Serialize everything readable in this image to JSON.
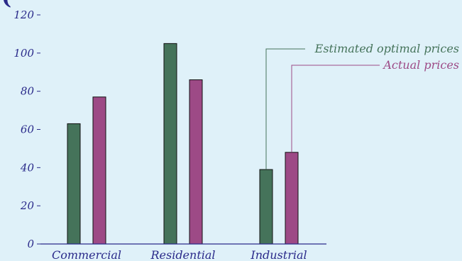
{
  "chart_data": {
    "type": "bar",
    "title": "(",
    "categories": [
      "Commercial",
      "Residential",
      "Industrial"
    ],
    "series": [
      {
        "name": "Estimated optimal prices",
        "values": [
          63,
          105,
          39
        ],
        "color": "#45735a"
      },
      {
        "name": "Actual prices",
        "values": [
          77,
          86,
          48
        ],
        "color": "#9d4a86"
      }
    ],
    "ylim": [
      0,
      120
    ],
    "yticks": [
      0,
      20,
      40,
      60,
      80,
      100,
      120
    ],
    "xlabel": "",
    "ylabel": "",
    "grid": false,
    "legend": "callout-labels"
  },
  "colors": {
    "background": "#dff1f9",
    "axis": "#2a2a8a",
    "bar_outline": "#111111"
  }
}
